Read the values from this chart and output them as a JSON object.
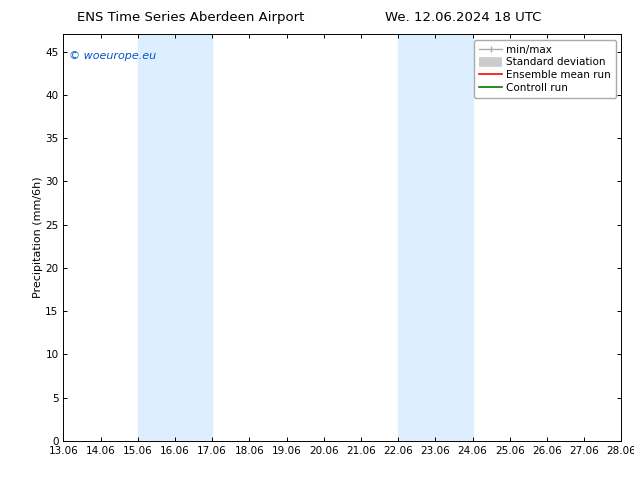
{
  "title_left": "ENS Time Series Aberdeen Airport",
  "title_right": "We. 12.06.2024 18 UTC",
  "ylabel": "Precipitation (mm/6h)",
  "xmin": 13.06,
  "xmax": 28.06,
  "ymin": 0,
  "ymax": 47,
  "yticks": [
    0,
    5,
    10,
    15,
    20,
    25,
    30,
    35,
    40,
    45
  ],
  "xtick_labels": [
    "13.06",
    "14.06",
    "15.06",
    "16.06",
    "17.06",
    "18.06",
    "19.06",
    "20.06",
    "21.06",
    "22.06",
    "23.06",
    "24.06",
    "25.06",
    "26.06",
    "27.06",
    "28.06"
  ],
  "xtick_values": [
    13.06,
    14.06,
    15.06,
    16.06,
    17.06,
    18.06,
    19.06,
    20.06,
    21.06,
    22.06,
    23.06,
    24.06,
    25.06,
    26.06,
    27.06,
    28.06
  ],
  "shaded_regions": [
    {
      "xstart": 15.06,
      "xend": 17.06
    },
    {
      "xstart": 22.06,
      "xend": 24.06
    }
  ],
  "shaded_color": "#ddeeff",
  "watermark_text": "© woeurope.eu",
  "watermark_color": "#0055cc",
  "legend_entries": [
    {
      "label": "min/max",
      "color": "#aaaaaa",
      "linewidth": 1.0,
      "type": "minmax"
    },
    {
      "label": "Standard deviation",
      "color": "#cccccc",
      "linewidth": 7,
      "type": "band"
    },
    {
      "label": "Ensemble mean run",
      "color": "#ff0000",
      "linewidth": 1.2,
      "type": "line"
    },
    {
      "label": "Controll run",
      "color": "#007700",
      "linewidth": 1.2,
      "type": "line"
    }
  ],
  "bg_color": "#ffffff",
  "plot_bg_color": "#ffffff",
  "title_fontsize": 9.5,
  "tick_fontsize": 7.5,
  "ylabel_fontsize": 8,
  "legend_fontsize": 7.5,
  "watermark_fontsize": 8
}
